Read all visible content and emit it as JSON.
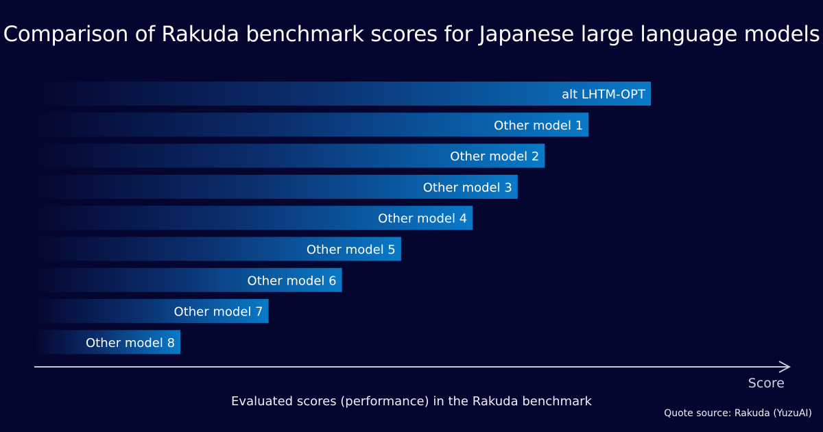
{
  "chart_data": {
    "type": "bar",
    "orientation": "horizontal",
    "title": "Comparison of Rakuda benchmark scores for Japanese large language models",
    "xlabel": "Evaluated scores (performance) in the Rakuda benchmark",
    "axis_name": "Score",
    "source": "Quote source: Rakuda (YuzuAI)",
    "categories": [
      "alt LHTM-OPT",
      "Other model 1",
      "Other model 2",
      "Other model 3",
      "Other model 4",
      "Other model 5",
      "Other model 6",
      "Other model 7",
      "Other model 8"
    ],
    "values": [
      100,
      89.9,
      82.8,
      78.4,
      71.1,
      59.5,
      49.9,
      38.0,
      23.7
    ],
    "value_note_scale": "relative, no numeric ticks shown",
    "xlim": [
      0,
      100
    ],
    "grid": false,
    "legend": "none",
    "colors": {
      "background": "#05062f",
      "bar_end": "#0a7ac8",
      "bar_start": "#05062f",
      "axis": "#c8cad8"
    }
  }
}
